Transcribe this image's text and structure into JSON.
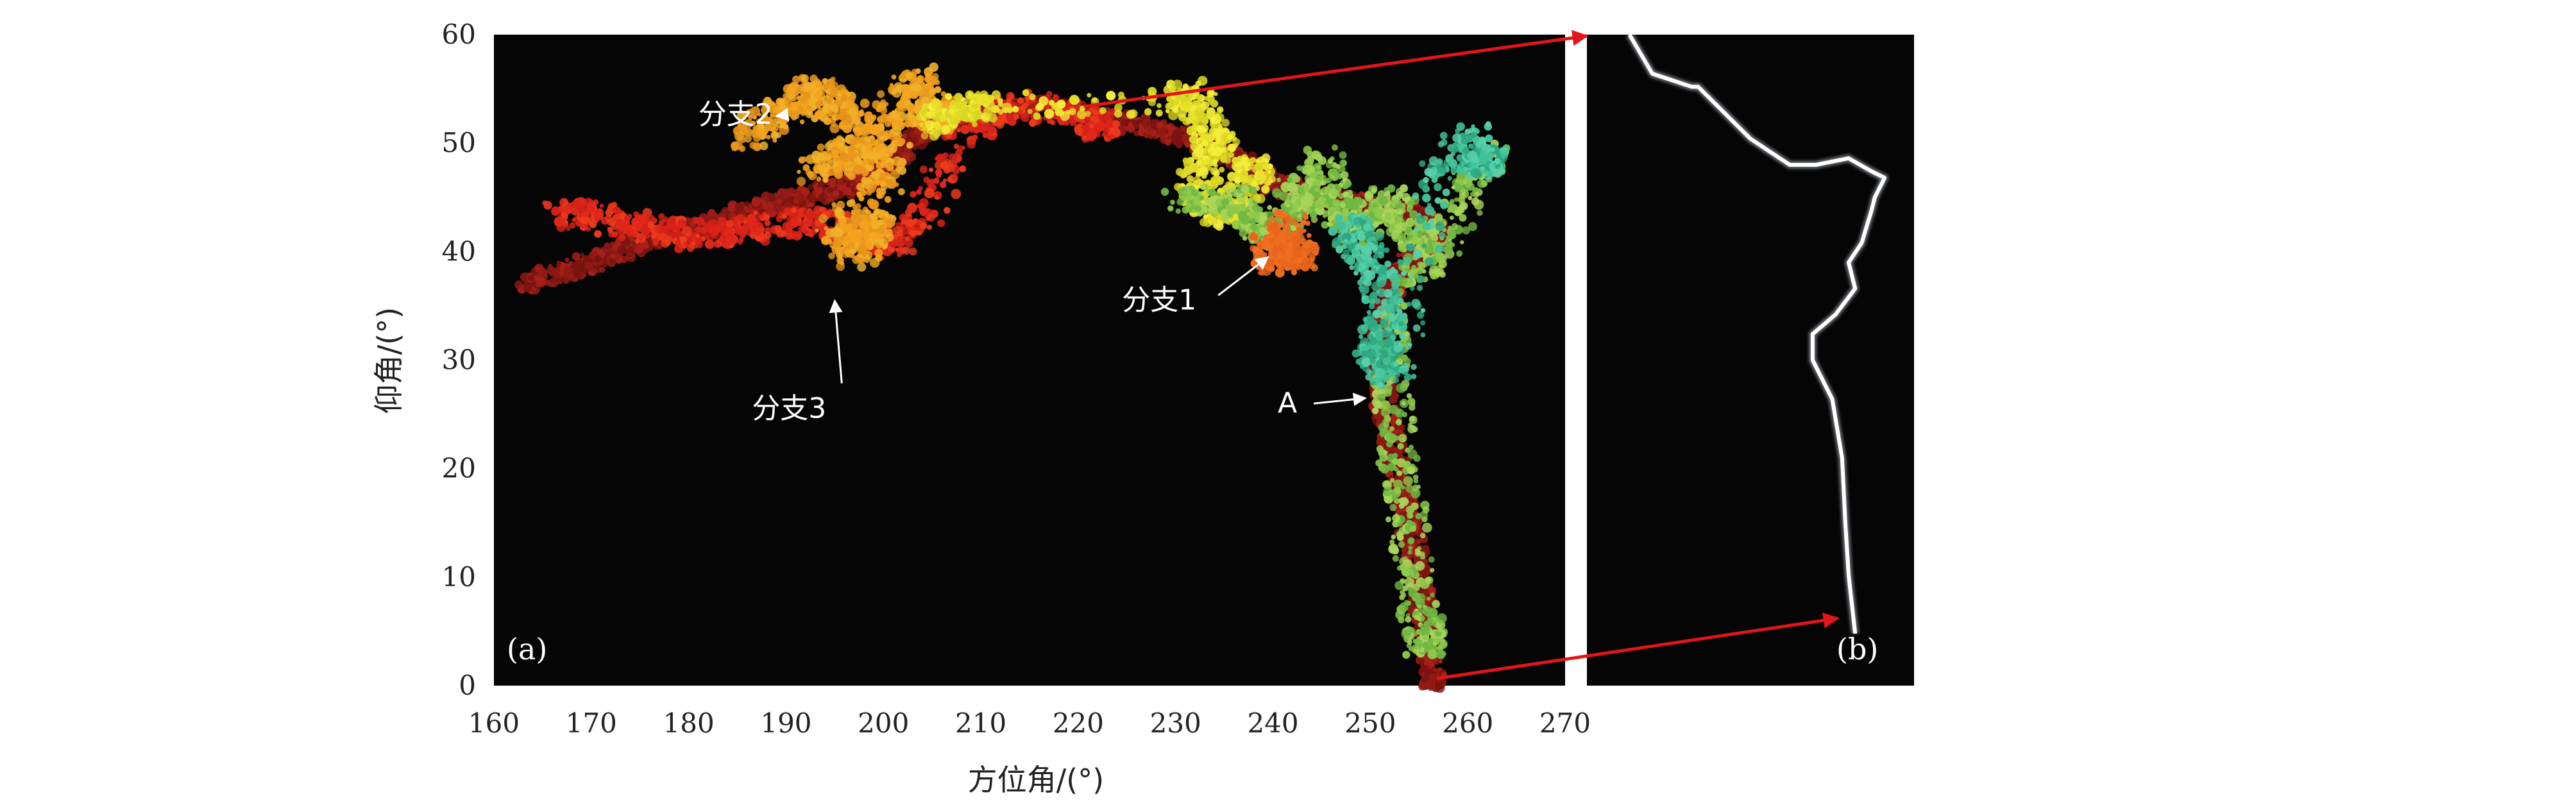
{
  "chart_data": {
    "type": "scatter",
    "xlabel": "方位角/(°)",
    "ylabel": "仰角/(°)",
    "xlim": [
      160,
      270
    ],
    "ylim": [
      0,
      60
    ],
    "x_ticks": [
      "160",
      "170",
      "180",
      "190",
      "200",
      "210",
      "220",
      "230",
      "240",
      "250",
      "260",
      "270"
    ],
    "y_ticks": [
      "0",
      "10",
      "20",
      "30",
      "40",
      "50",
      "60"
    ],
    "grid": false,
    "background": "#050505",
    "panel_labels": {
      "a": "(a)",
      "b": "(b)"
    },
    "annotations": [
      {
        "text": "分支2",
        "text_at": [
          181,
          52.6
        ],
        "arrow_to": [
          189,
          52.5
        ]
      },
      {
        "text": "分支1",
        "text_at": [
          224.5,
          35.5
        ],
        "arrow_to": [
          239.5,
          39.5
        ]
      },
      {
        "text": "分支3",
        "text_at": [
          186.5,
          25.5
        ],
        "arrow_to": [
          195,
          35.5
        ]
      },
      {
        "text": "A",
        "text_at": [
          240.5,
          26
        ],
        "arrow_to": [
          249.5,
          26.5
        ]
      }
    ],
    "channels": [
      {
        "colors": [
          "#7a1410",
          "#8f1a14",
          "#a8201a"
        ],
        "points": [
          [
            163.5,
            37
          ],
          [
            166,
            37.8
          ],
          [
            169,
            38.6
          ],
          [
            172,
            39.8
          ],
          [
            175,
            40.8
          ],
          [
            178,
            41.8
          ],
          [
            181,
            42.4
          ],
          [
            184,
            43.2
          ],
          [
            187,
            43.9
          ],
          [
            190,
            44.6
          ],
          [
            193,
            45.3
          ],
          [
            196,
            45.9
          ],
          [
            198,
            46.5
          ],
          [
            200,
            47.6
          ],
          [
            202,
            49.4
          ],
          [
            204,
            51.2
          ],
          [
            207,
            52.2
          ],
          [
            210,
            52.6
          ],
          [
            213,
            53.2
          ],
          [
            216,
            53.4
          ],
          [
            219,
            53.1
          ],
          [
            222,
            52.4
          ],
          [
            225,
            51.8
          ],
          [
            228,
            51.2
          ],
          [
            231,
            50.6
          ],
          [
            234,
            49.4
          ],
          [
            237,
            48.2
          ],
          [
            240,
            46.4
          ],
          [
            243,
            45.4
          ],
          [
            246,
            44.9
          ],
          [
            249,
            44.4
          ],
          [
            252,
            43.9
          ],
          [
            255,
            43.4
          ],
          [
            256.5,
            42.6
          ],
          [
            256.5,
            40.5
          ],
          [
            254,
            39
          ],
          [
            252.5,
            37.5
          ],
          [
            251.5,
            35
          ],
          [
            251,
            32.5
          ],
          [
            251,
            30
          ],
          [
            251.2,
            28
          ],
          [
            251.6,
            25
          ],
          [
            252.4,
            22
          ],
          [
            253.3,
            18
          ],
          [
            254.2,
            14
          ],
          [
            255,
            10
          ],
          [
            255.6,
            6
          ],
          [
            256,
            3
          ],
          [
            256.4,
            0.5
          ]
        ]
      },
      {
        "colors": [
          "#e1271a",
          "#ee3a1c",
          "#d6211a"
        ],
        "points": [
          [
            167,
            43.5
          ],
          [
            171,
            43.2
          ],
          [
            175,
            42.3
          ],
          [
            180,
            41.5
          ],
          [
            185,
            41.8
          ],
          [
            190,
            42.6
          ],
          [
            194,
            42.8
          ],
          [
            198,
            41.6
          ],
          [
            201,
            40.6
          ],
          [
            204,
            43.5
          ],
          [
            208,
            51
          ],
          [
            215,
            53.5
          ],
          [
            222,
            51.6
          ]
        ]
      },
      {
        "colors": [
          "#f5a21e",
          "#f0b12a",
          "#e8951d"
        ],
        "points": [
          [
            186,
            50.6
          ],
          [
            189,
            52.4
          ],
          [
            191.5,
            53.6
          ],
          [
            193,
            55
          ],
          [
            195,
            53.7
          ],
          [
            197,
            52.2
          ],
          [
            199.5,
            49.6
          ],
          [
            201.5,
            53.6
          ],
          [
            203.5,
            56
          ],
          [
            205,
            52.4
          ],
          [
            207,
            53
          ],
          [
            193,
            47.4
          ],
          [
            196,
            49.4
          ],
          [
            198,
            48.2
          ],
          [
            200.5,
            46.8
          ],
          [
            195,
            41.6
          ],
          [
            197.5,
            39.8
          ],
          [
            199,
            42.4
          ]
        ]
      },
      {
        "colors": [
          "#e9e12b",
          "#f4ee3a",
          "#d9d622"
        ],
        "points": [
          [
            205,
            51.6
          ],
          [
            208,
            53
          ],
          [
            210,
            53.5
          ],
          [
            230.5,
            53.6
          ],
          [
            232,
            54.6
          ],
          [
            233.5,
            51
          ],
          [
            235,
            49.4
          ],
          [
            232,
            46.4
          ],
          [
            233.5,
            44.4
          ],
          [
            235.5,
            43
          ],
          [
            238,
            47.4
          ]
        ]
      },
      {
        "colors": [
          "#8ec94a",
          "#a7d55a",
          "#6fb843"
        ],
        "points": [
          [
            230.5,
            44.6
          ],
          [
            236,
            45
          ],
          [
            238,
            42.6
          ],
          [
            240.5,
            41
          ],
          [
            242.5,
            46
          ],
          [
            244,
            43.6
          ],
          [
            245,
            48.4
          ],
          [
            246.5,
            44.8
          ],
          [
            248.5,
            41.4
          ],
          [
            250,
            43.5
          ],
          [
            252,
            44.9
          ],
          [
            254.5,
            41.5
          ],
          [
            256,
            38
          ],
          [
            260,
            45.8
          ],
          [
            262.5,
            49.2
          ],
          [
            252,
            34.6
          ],
          [
            252.4,
            27
          ],
          [
            252.9,
            21
          ],
          [
            253.9,
            15
          ],
          [
            254.9,
            8
          ],
          [
            255.6,
            4
          ]
        ]
      },
      {
        "colors": [
          "#3fc29a",
          "#57d0a9",
          "#2ea884"
        ],
        "points": [
          [
            248,
            42.6
          ],
          [
            249,
            40.6
          ],
          [
            251,
            37.6
          ],
          [
            251.5,
            33
          ],
          [
            250.5,
            30
          ],
          [
            252.6,
            28.5
          ],
          [
            257,
            47.2
          ],
          [
            260.5,
            50.6
          ],
          [
            262,
            48.2
          ]
        ]
      },
      {
        "colors": [
          "#e8641c",
          "#f06f20"
        ],
        "points": [
          [
            239.5,
            41.2
          ],
          [
            240.5,
            39
          ],
          [
            241.5,
            42.6
          ],
          [
            242.5,
            39.6
          ]
        ]
      }
    ],
    "inset_channel": {
      "label": "(b)",
      "points": [
        [
          0.13,
          0.0
        ],
        [
          0.2,
          0.06
        ],
        [
          0.32,
          0.08
        ],
        [
          0.34,
          0.08
        ],
        [
          0.42,
          0.12
        ],
        [
          0.5,
          0.16
        ],
        [
          0.62,
          0.2
        ],
        [
          0.7,
          0.2
        ],
        [
          0.8,
          0.19
        ],
        [
          0.87,
          0.21
        ],
        [
          0.91,
          0.22
        ],
        [
          0.88,
          0.25
        ],
        [
          0.87,
          0.27
        ],
        [
          0.84,
          0.32
        ],
        [
          0.8,
          0.35
        ],
        [
          0.82,
          0.39
        ],
        [
          0.76,
          0.43
        ],
        [
          0.69,
          0.46
        ],
        [
          0.69,
          0.5
        ],
        [
          0.75,
          0.56
        ],
        [
          0.78,
          0.65
        ],
        [
          0.79,
          0.75
        ],
        [
          0.8,
          0.83
        ],
        [
          0.82,
          0.92
        ]
      ]
    }
  }
}
